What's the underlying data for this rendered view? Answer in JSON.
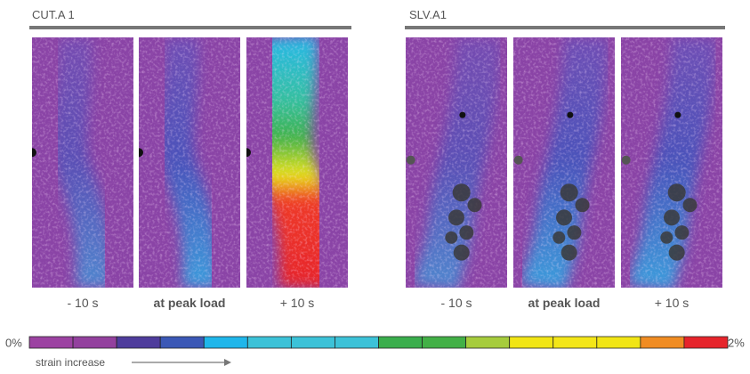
{
  "groups": [
    {
      "title": "CUT.A 1",
      "panels": [
        "- 10 s",
        "at peak load",
        "+ 10 s"
      ]
    },
    {
      "title": "SLV.A1",
      "panels": [
        "- 10 s",
        "at peak load",
        "+ 10 s"
      ]
    }
  ],
  "colorbar": {
    "min_label": "0%",
    "max_label": "2%",
    "caption": "strain increase",
    "colors": [
      "#9c42a2",
      "#93409e",
      "#4e3c9c",
      "#3b58b6",
      "#1fb6ea",
      "#3cc2d8",
      "#3cc2d8",
      "#3cc2d8",
      "#3aae4c",
      "#42b046",
      "#a6cc3c",
      "#f1e514",
      "#f3e618",
      "#f1e514",
      "#f08c22",
      "#e6242b"
    ]
  }
}
